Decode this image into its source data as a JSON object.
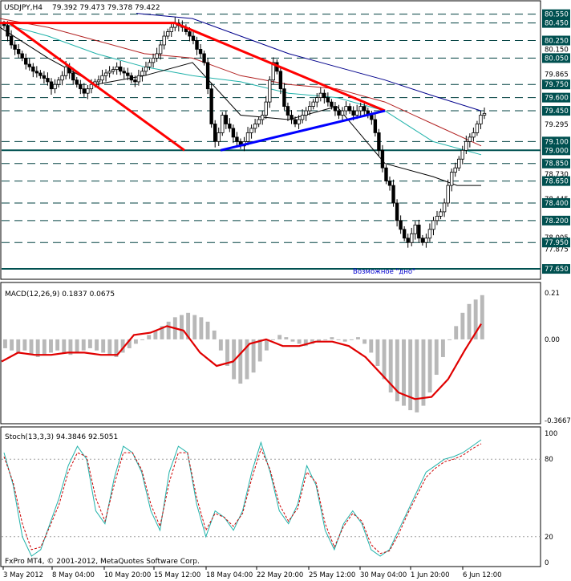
{
  "chart_data": [
    {
      "type": "candlestick",
      "title": "USDJPY,H4",
      "ohlc_header": "79.392 79.473 79.378 79.422",
      "ylim": [
        77.55,
        80.62
      ],
      "price_ticks": [
        "80.550",
        "80.450",
        "80.250",
        "80.150",
        "80.050",
        "79.865",
        "79.750",
        "79.600",
        "79.450",
        "79.295",
        "79.100",
        "79.000",
        "78.850",
        "78.730",
        "78.650",
        "78.445",
        "78.400",
        "78.200",
        "78.005",
        "77.950",
        "77.875",
        "77.650"
      ],
      "price_tags": [
        {
          "label": "80.550",
          "value": 80.55
        },
        {
          "label": "80.450",
          "value": 80.45
        },
        {
          "label": "80.250",
          "value": 80.25
        },
        {
          "label": "80.050",
          "value": 80.05
        },
        {
          "label": "79.750",
          "value": 79.75
        },
        {
          "label": "79.600",
          "value": 79.6
        },
        {
          "label": "79.450",
          "value": 79.45
        },
        {
          "label": "79.100",
          "value": 79.1
        },
        {
          "label": "79.000",
          "value": 79.0
        },
        {
          "label": "78.850",
          "value": 78.85
        },
        {
          "label": "78.650",
          "value": 78.65
        },
        {
          "label": "78.400",
          "value": 78.4
        },
        {
          "label": "78.200",
          "value": 78.2
        },
        {
          "label": "77.950",
          "value": 77.95
        },
        {
          "label": "77.650",
          "value": 77.65
        }
      ],
      "dashed_levels": [
        80.55,
        80.45,
        80.25,
        80.05,
        79.75,
        79.6,
        79.45,
        79.1,
        78.85,
        78.65,
        78.4,
        78.2,
        77.95
      ],
      "solid_levels": [
        79.0,
        77.65
      ],
      "close_path": [
        80.42,
        80.3,
        80.2,
        80.15,
        80.1,
        80.05,
        79.98,
        79.95,
        79.9,
        79.88,
        79.85,
        79.82,
        79.78,
        79.7,
        79.75,
        79.8,
        79.85,
        79.95,
        79.88,
        79.8,
        79.75,
        79.7,
        79.65,
        79.7,
        79.75,
        79.78,
        79.8,
        79.85,
        79.88,
        79.9,
        79.92,
        79.95,
        79.9,
        79.88,
        79.85,
        79.8,
        79.78,
        79.85,
        79.9,
        79.95,
        80.0,
        80.05,
        80.1,
        80.2,
        80.3,
        80.35,
        80.4,
        80.45,
        80.42,
        80.4,
        80.35,
        80.3,
        80.25,
        80.15,
        80.1,
        80.0,
        79.7,
        79.3,
        79.1,
        79.2,
        79.4,
        79.3,
        79.25,
        79.15,
        79.1,
        79.05,
        79.1,
        79.2,
        79.25,
        79.3,
        79.35,
        79.4,
        79.55,
        79.8,
        80.0,
        79.9,
        79.7,
        79.5,
        79.4,
        79.35,
        79.3,
        79.35,
        79.4,
        79.45,
        79.5,
        79.55,
        79.6,
        79.65,
        79.6,
        79.55,
        79.5,
        79.45,
        79.4,
        79.45,
        79.5,
        79.45,
        79.4,
        79.45,
        79.5,
        79.45,
        79.4,
        79.35,
        79.2,
        79.0,
        78.8,
        78.65,
        78.6,
        78.4,
        78.2,
        78.1,
        78.0,
        77.95,
        78.05,
        78.15,
        78.0,
        77.95,
        78.0,
        78.1,
        78.2,
        78.25,
        78.3,
        78.4,
        78.6,
        78.75,
        78.8,
        78.9,
        79.0,
        79.1,
        79.15,
        79.2,
        79.3,
        79.4,
        79.42
      ],
      "trendlines": [
        {
          "color": "#ff0000",
          "from": [
            0,
            80.45
          ],
          "to": [
            218,
            80.45
          ]
        },
        {
          "color": "#ff0000",
          "from": [
            12,
            80.45
          ],
          "to": [
            230,
            79.0
          ]
        },
        {
          "color": "#ff0000",
          "from": [
            218,
            80.45
          ],
          "to": [
            480,
            79.45
          ]
        },
        {
          "color": "#0000ff",
          "from": [
            275,
            79.0
          ],
          "to": [
            480,
            79.45
          ]
        }
      ],
      "ma_series": [
        {
          "color": "#00008b",
          "points": [
            [
              170,
              80.56
            ],
            [
              240,
              80.5
            ],
            [
              300,
              80.3
            ],
            [
              360,
              80.1
            ],
            [
              420,
              79.95
            ],
            [
              480,
              79.8
            ],
            [
              540,
              79.62
            ],
            [
              600,
              79.45
            ]
          ]
        },
        {
          "color": "#b22222",
          "points": [
            [
              0,
              80.5
            ],
            [
              60,
              80.4
            ],
            [
              120,
              80.25
            ],
            [
              180,
              80.1
            ],
            [
              240,
              80.05
            ],
            [
              300,
              79.85
            ],
            [
              360,
              79.75
            ],
            [
              420,
              79.7
            ],
            [
              480,
              79.55
            ],
            [
              540,
              79.3
            ],
            [
              600,
              79.05
            ]
          ]
        },
        {
          "color": "#20b2aa",
          "points": [
            [
              0,
              80.45
            ],
            [
              60,
              80.3
            ],
            [
              120,
              80.1
            ],
            [
              180,
              79.95
            ],
            [
              240,
              79.85
            ],
            [
              300,
              79.78
            ],
            [
              360,
              79.65
            ],
            [
              420,
              79.6
            ],
            [
              480,
              79.45
            ],
            [
              540,
              79.1
            ],
            [
              600,
              78.95
            ]
          ]
        },
        {
          "color": "#000000",
          "points": [
            [
              0,
              80.4
            ],
            [
              60,
              80.05
            ],
            [
              120,
              79.75
            ],
            [
              180,
              79.85
            ],
            [
              240,
              80.0
            ],
            [
              300,
              79.4
            ],
            [
              360,
              79.35
            ],
            [
              420,
              79.5
            ],
            [
              480,
              78.85
            ],
            [
              540,
              78.7
            ],
            [
              570,
              78.6
            ],
            [
              600,
              78.6
            ]
          ]
        }
      ],
      "annotation": "Возможное \"дно\""
    },
    {
      "type": "histogram+line",
      "title": "MACD(12,26,9) 0.1837 0.0675",
      "ylim": [
        -0.3667,
        0.21
      ],
      "ticks": [
        "0.21",
        "0.00",
        "-0.3667"
      ],
      "histogram": [
        -0.04,
        -0.05,
        -0.06,
        -0.05,
        -0.07,
        -0.08,
        -0.07,
        -0.06,
        -0.05,
        -0.06,
        -0.07,
        -0.06,
        -0.05,
        -0.04,
        -0.05,
        -0.06,
        -0.07,
        -0.08,
        -0.06,
        -0.04,
        -0.02,
        0.0,
        0.02,
        0.04,
        0.06,
        0.08,
        0.1,
        0.11,
        0.12,
        0.11,
        0.1,
        0.08,
        0.04,
        -0.05,
        -0.12,
        -0.18,
        -0.2,
        -0.18,
        -0.15,
        -0.1,
        -0.05,
        0.0,
        0.02,
        0.01,
        -0.01,
        -0.02,
        -0.03,
        -0.02,
        -0.01,
        0.0,
        0.01,
        0.0,
        -0.01,
        0.0,
        0.01,
        -0.02,
        -0.06,
        -0.12,
        -0.18,
        -0.24,
        -0.28,
        -0.3,
        -0.32,
        -0.33,
        -0.3,
        -0.24,
        -0.16,
        -0.08,
        0.0,
        0.06,
        0.12,
        0.16,
        0.18,
        0.2
      ],
      "signal": [
        -0.1,
        -0.06,
        -0.07,
        -0.07,
        -0.06,
        -0.06,
        -0.07,
        -0.07,
        0.02,
        0.03,
        0.06,
        0.04,
        -0.06,
        -0.12,
        -0.1,
        -0.02,
        0.0,
        -0.03,
        -0.03,
        -0.01,
        -0.01,
        -0.03,
        -0.08,
        -0.16,
        -0.24,
        -0.27,
        -0.26,
        -0.18,
        -0.05,
        0.07
      ]
    },
    {
      "type": "line",
      "title": "Stoch(13,3,3) 94.3846 92.5051",
      "ylim": [
        0,
        100
      ],
      "ticks": [
        "100",
        "80",
        "20",
        "0"
      ],
      "main": [
        85,
        60,
        20,
        5,
        10,
        30,
        50,
        75,
        90,
        80,
        40,
        30,
        65,
        90,
        85,
        70,
        40,
        25,
        70,
        90,
        85,
        45,
        20,
        40,
        35,
        25,
        40,
        70,
        93,
        70,
        40,
        30,
        45,
        75,
        60,
        25,
        10,
        30,
        40,
        30,
        10,
        5,
        10,
        25,
        40,
        55,
        70,
        75,
        80,
        82,
        85,
        90,
        95
      ],
      "signal": [
        82,
        62,
        30,
        10,
        12,
        28,
        45,
        70,
        85,
        82,
        50,
        32,
        60,
        85,
        85,
        72,
        45,
        28,
        62,
        85,
        85,
        50,
        25,
        38,
        35,
        28,
        38,
        65,
        88,
        72,
        45,
        32,
        42,
        70,
        62,
        30,
        12,
        28,
        38,
        32,
        14,
        7,
        9,
        22,
        38,
        52,
        66,
        73,
        78,
        80,
        83,
        88,
        92
      ]
    }
  ],
  "x_ticks": [
    "3 May 2012",
    "8 May 04:00",
    "10 May 20:00",
    "15 May 12:00",
    "18 May 04:00",
    "22 May 20:00",
    "25 May 12:00",
    "30 May 04:00",
    "1 Jun 20:00",
    "6 Jun 12:00"
  ],
  "footer": "FxPro MT4, © 2001-2012, MetaQuotes Software Corp."
}
